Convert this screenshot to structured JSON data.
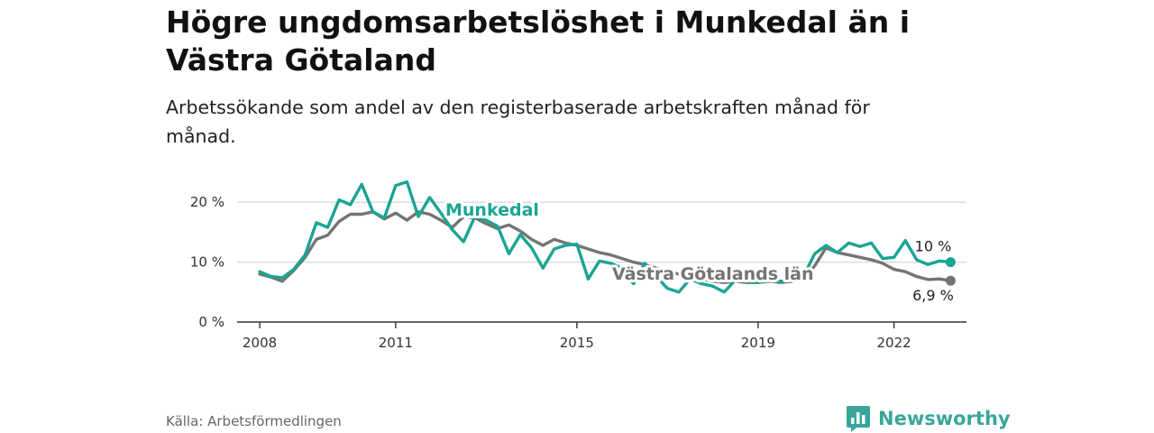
{
  "title": "Högre ungdomsarbetslöshet i Munkedal än i Västra Götaland",
  "subtitle": "Arbetssökande som andel av den registerbaserade arbetskraften månad för månad.",
  "source": "Källa: Arbetsförmedlingen",
  "brand": "Newsworthy",
  "colors": {
    "munkedal": "#1aa593",
    "region": "#747474",
    "grid": "#dddddd",
    "axis": "#333333"
  },
  "chart_data": {
    "type": "line",
    "ylim": [
      0,
      25
    ],
    "xlim": [
      2007.5,
      2023.6
    ],
    "yticks": [
      {
        "value": 0,
        "label": "0 %"
      },
      {
        "value": 10,
        "label": "10 %"
      },
      {
        "value": 20,
        "label": "20 %"
      }
    ],
    "xticks": [
      {
        "value": 2008,
        "label": "2008"
      },
      {
        "value": 2011,
        "label": "2011"
      },
      {
        "value": 2015,
        "label": "2015"
      },
      {
        "value": 2019,
        "label": "2019"
      },
      {
        "value": 2022,
        "label": "2022"
      }
    ],
    "series": [
      {
        "name": "Västra Götalands län",
        "label": "Västra Götalands län",
        "end_label": "6,9 %",
        "end_value": 6.9,
        "color": "#747474",
        "x": [
          2008,
          2008.25,
          2008.5,
          2008.75,
          2009,
          2009.25,
          2009.5,
          2009.75,
          2010,
          2010.25,
          2010.5,
          2010.75,
          2011,
          2011.25,
          2011.5,
          2011.75,
          2012,
          2012.25,
          2012.5,
          2012.75,
          2013,
          2013.25,
          2013.5,
          2013.75,
          2014,
          2014.25,
          2014.5,
          2014.75,
          2015,
          2015.25,
          2015.5,
          2015.75,
          2016,
          2016.25,
          2016.5,
          2016.75,
          2017,
          2017.25,
          2017.5,
          2017.75,
          2018,
          2018.25,
          2018.5,
          2018.75,
          2019,
          2019.25,
          2019.5,
          2019.75,
          2020,
          2020.25,
          2020.5,
          2020.75,
          2021,
          2021.25,
          2021.5,
          2021.75,
          2022,
          2022.25,
          2022.5,
          2022.75,
          2023,
          2023.25
        ],
        "y": [
          8.0,
          7.5,
          6.8,
          8.6,
          10.8,
          13.8,
          14.5,
          16.8,
          18.0,
          18.0,
          18.4,
          17.2,
          18.2,
          17.0,
          18.4,
          18.0,
          17.0,
          15.8,
          17.6,
          17.4,
          16.4,
          15.6,
          16.2,
          15.2,
          13.8,
          12.8,
          13.8,
          13.2,
          12.8,
          12.2,
          11.6,
          11.2,
          10.6,
          10.0,
          9.6,
          9.0,
          8.4,
          8.0,
          7.6,
          7.2,
          6.8,
          6.6,
          6.8,
          6.6,
          6.6,
          6.8,
          6.6,
          6.8,
          7.2,
          9.4,
          12.4,
          11.6,
          11.2,
          10.8,
          10.4,
          9.8,
          8.8,
          8.4,
          7.6,
          7.1,
          7.2,
          6.9
        ]
      },
      {
        "name": "Munkedal",
        "label": "Munkedal",
        "end_label": "10 %",
        "end_value": 10,
        "color": "#1aa593",
        "x": [
          2008,
          2008.25,
          2008.5,
          2008.75,
          2009,
          2009.25,
          2009.5,
          2009.75,
          2010,
          2010.25,
          2010.5,
          2010.75,
          2011,
          2011.25,
          2011.5,
          2011.75,
          2012,
          2012.25,
          2012.5,
          2012.75,
          2013,
          2013.25,
          2013.5,
          2013.75,
          2014,
          2014.25,
          2014.5,
          2014.75,
          2015,
          2015.25,
          2015.5,
          2015.75,
          2016,
          2016.25,
          2016.5,
          2016.75,
          2017,
          2017.25,
          2017.5,
          2017.75,
          2018,
          2018.25,
          2018.5,
          2018.75,
          2019,
          2019.25,
          2019.5,
          2019.75,
          2020,
          2020.25,
          2020.5,
          2020.75,
          2021,
          2021.25,
          2021.5,
          2021.75,
          2022,
          2022.25,
          2022.5,
          2022.75,
          2023,
          2023.25
        ],
        "y": [
          8.4,
          7.6,
          7.4,
          8.8,
          11.2,
          16.6,
          15.8,
          20.4,
          19.6,
          23.0,
          18.4,
          17.4,
          22.8,
          23.4,
          17.6,
          20.8,
          18.2,
          15.4,
          13.4,
          17.6,
          17.0,
          16.0,
          11.4,
          14.6,
          12.4,
          9.0,
          12.2,
          12.8,
          13.0,
          7.2,
          10.2,
          9.8,
          9.0,
          6.4,
          9.8,
          7.6,
          5.6,
          5.0,
          7.2,
          6.4,
          6.0,
          5.0,
          7.0,
          6.8,
          6.6,
          7.0,
          6.8,
          7.0,
          7.6,
          11.4,
          12.8,
          11.6,
          13.2,
          12.6,
          13.2,
          10.6,
          10.8,
          13.6,
          10.4,
          9.6,
          10.2,
          10.0
        ]
      }
    ]
  }
}
